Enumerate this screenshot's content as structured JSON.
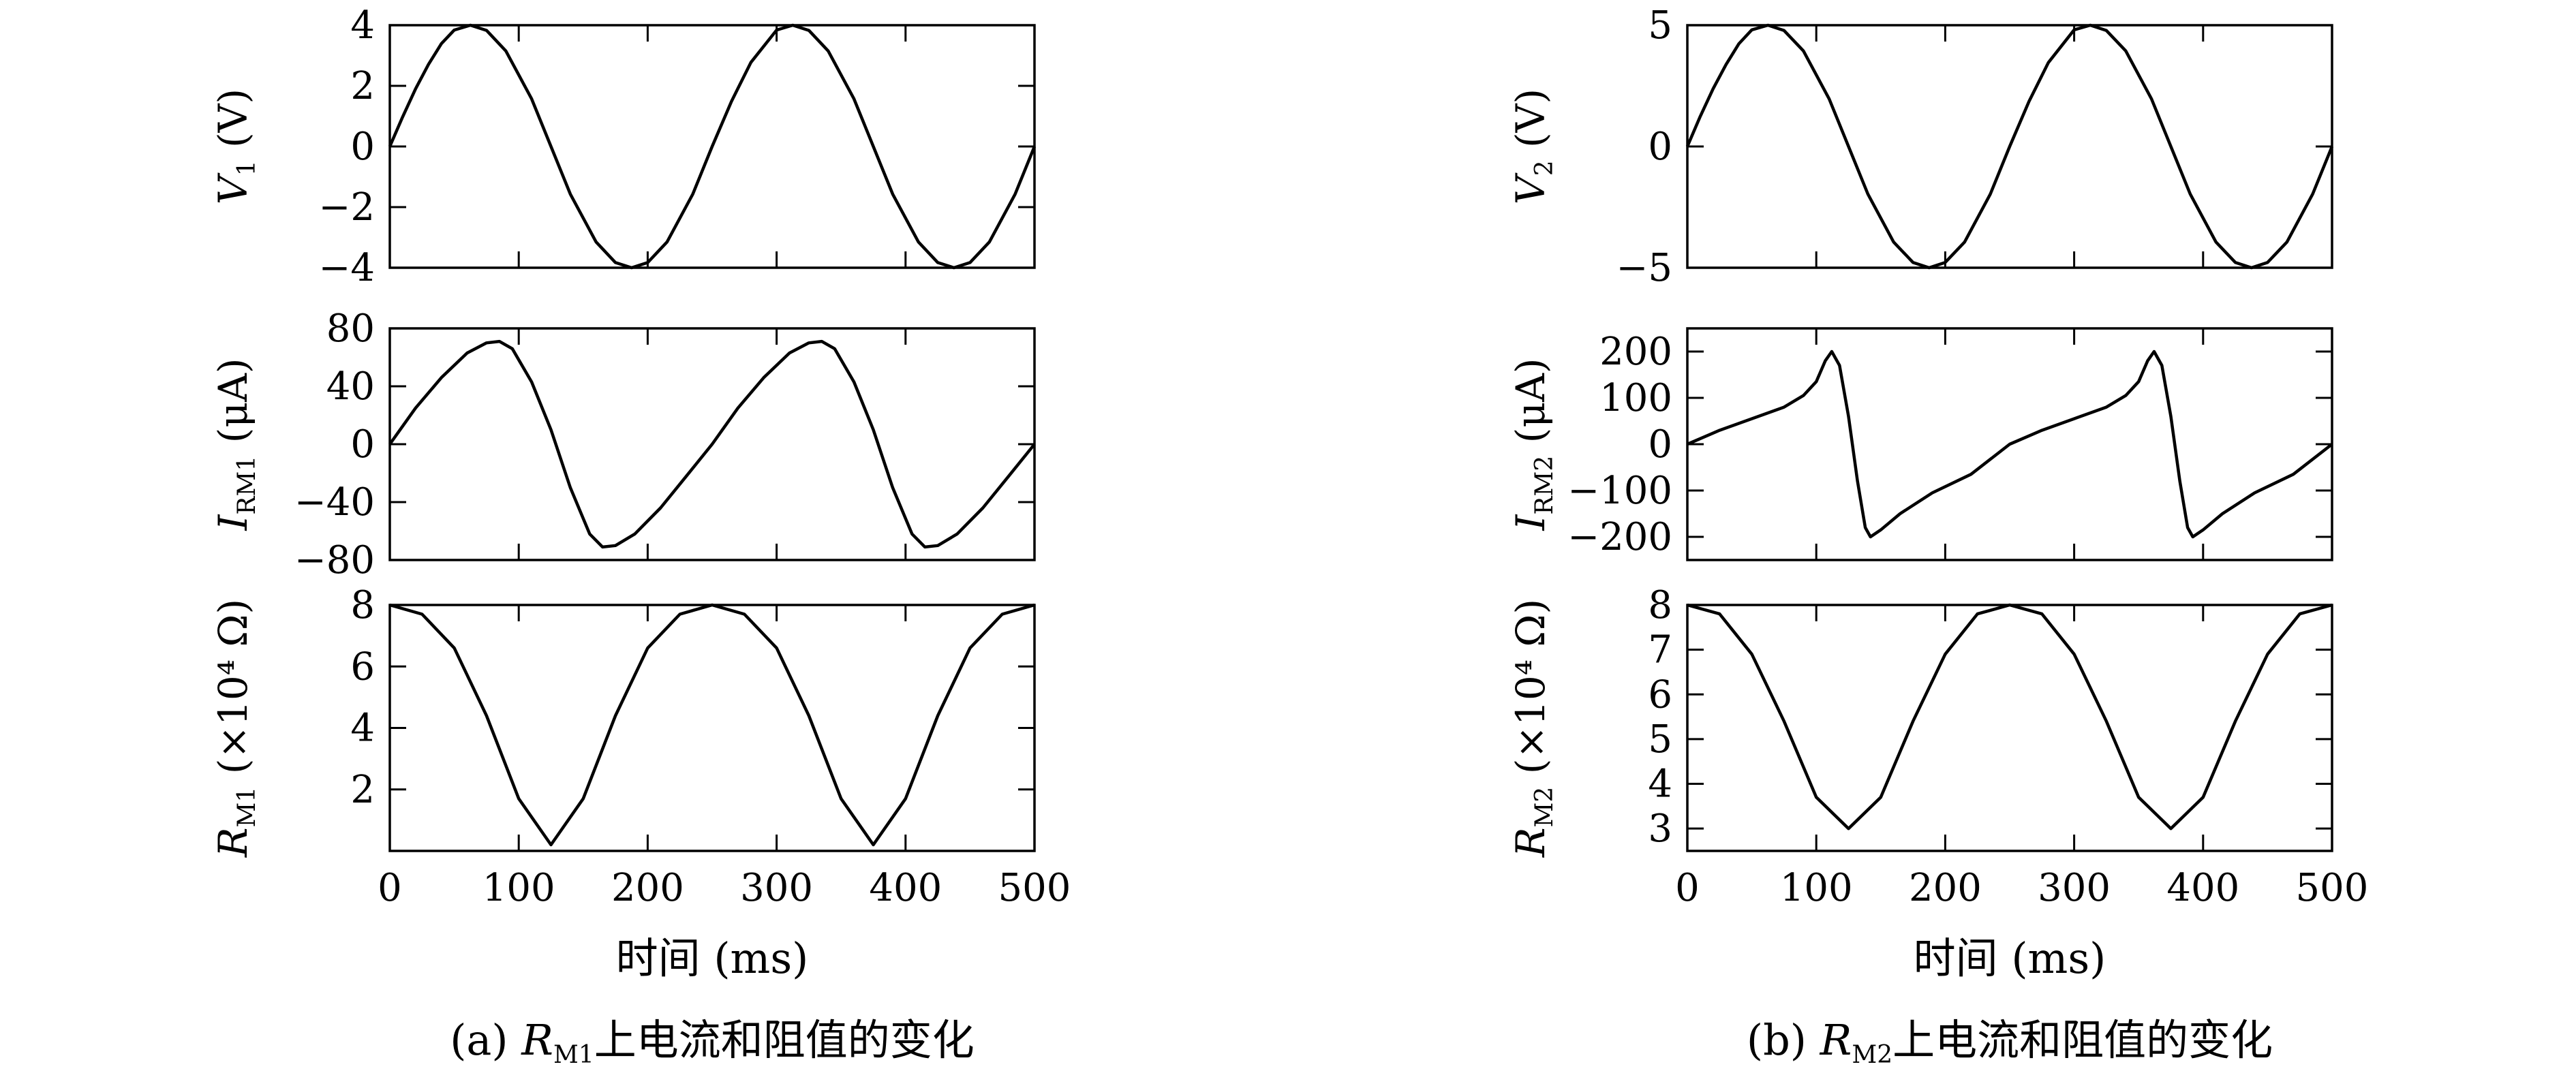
{
  "chart_data": [
    {
      "id": "a",
      "type": "line",
      "caption": {
        "prefix": "(a) ",
        "var": "R",
        "sub": "M1",
        "rest": "上电流和阻值的变化"
      },
      "xlabel": "时间 (ms)",
      "xlim": [
        0,
        500
      ],
      "xticks": [
        "0",
        "100",
        "200",
        "300",
        "400",
        "500"
      ],
      "panels": [
        {
          "ylabel": {
            "var": "V",
            "sub": "1",
            "unit": " (V)"
          },
          "ylim": [
            -4,
            4
          ],
          "yticks": [
            "4",
            "2",
            "0",
            "−2",
            "−4"
          ],
          "yticks_values": [
            4,
            2,
            0,
            -2,
            -4
          ],
          "series": {
            "x": [
              0,
              10,
              20,
              30,
              40,
              50,
              62.5,
              75,
              90,
              110,
              125,
              140,
              160,
              175,
              187.5,
              200,
              215,
              235,
              250,
              265,
              280,
              300,
              312.5,
              325,
              340,
              360,
              375,
              390,
              410,
              425,
              437.5,
              450,
              465,
              485,
              500
            ],
            "y": [
              0,
              0.98,
              1.9,
              2.71,
              3.39,
              3.84,
              4.0,
              3.83,
              3.15,
              1.57,
              0,
              -1.57,
              -3.15,
              -3.83,
              -4.0,
              -3.83,
              -3.15,
              -1.57,
              0,
              1.49,
              2.77,
              3.84,
              4.0,
              3.83,
              3.15,
              1.57,
              0,
              -1.57,
              -3.15,
              -3.83,
              -4.0,
              -3.83,
              -3.15,
              -1.57,
              0
            ]
          }
        },
        {
          "ylabel": {
            "var": "I",
            "sub": "RM1",
            "unit": " (μA)"
          },
          "ylim": [
            -80,
            80
          ],
          "yticks": [
            "80",
            "40",
            "0",
            "−40",
            "−80"
          ],
          "yticks_values": [
            80,
            40,
            0,
            -40,
            -80
          ],
          "series": {
            "x": [
              0,
              20,
              40,
              60,
              75,
              85,
              95,
              110,
              125,
              140,
              155,
              165,
              175,
              190,
              210,
              230,
              250,
              270,
              290,
              310,
              325,
              335,
              345,
              360,
              375,
              390,
              405,
              415,
              425,
              440,
              460,
              480,
              500
            ],
            "y": [
              0,
              25,
              46,
              63,
              70,
              71,
              66,
              43,
              10,
              -30,
              -62,
              -71,
              -70,
              -62,
              -44,
              -22,
              0,
              25,
              46,
              63,
              70,
              71,
              66,
              43,
              10,
              -30,
              -62,
              -71,
              -70,
              -62,
              -44,
              -22,
              0
            ]
          }
        },
        {
          "ylabel": {
            "var": "R",
            "sub": "M1",
            "unit": " (×10⁴ Ω)"
          },
          "ylim": [
            0,
            8
          ],
          "yticks": [
            "8",
            "6",
            "4",
            "2"
          ],
          "yticks_values": [
            8,
            6,
            4,
            2
          ],
          "series": {
            "x": [
              0,
              25,
              50,
              75,
              100,
              125,
              150,
              175,
              200,
              225,
              250,
              275,
              300,
              325,
              350,
              375,
              400,
              425,
              450,
              475,
              500
            ],
            "y": [
              8.0,
              7.7,
              6.6,
              4.4,
              1.7,
              0.2,
              1.7,
              4.4,
              6.6,
              7.7,
              8.0,
              7.7,
              6.6,
              4.4,
              1.7,
              0.2,
              1.7,
              4.4,
              6.6,
              7.7,
              8.0
            ]
          }
        }
      ]
    },
    {
      "id": "b",
      "type": "line",
      "caption": {
        "prefix": "(b) ",
        "var": "R",
        "sub": "M2",
        "rest": "上电流和阻值的变化"
      },
      "xlabel": "时间 (ms)",
      "xlim": [
        0,
        500
      ],
      "xticks": [
        "0",
        "100",
        "200",
        "300",
        "400",
        "500"
      ],
      "panels": [
        {
          "ylabel": {
            "var": "V",
            "sub": "2",
            "unit": " (V)"
          },
          "ylim": [
            -5,
            5
          ],
          "yticks": [
            "5",
            "0",
            "−5"
          ],
          "yticks_values": [
            5,
            0,
            -5
          ],
          "series": {
            "x": [
              0,
              10,
              20,
              30,
              40,
              50,
              62.5,
              75,
              90,
              110,
              125,
              140,
              160,
              175,
              187.5,
              200,
              215,
              235,
              250,
              265,
              280,
              300,
              312.5,
              325,
              340,
              360,
              375,
              390,
              410,
              425,
              437.5,
              450,
              465,
              485,
              500
            ],
            "y": [
              0,
              1.24,
              2.38,
              3.38,
              4.24,
              4.81,
              5.0,
              4.78,
              3.94,
              1.96,
              0,
              -1.96,
              -3.94,
              -4.78,
              -5.0,
              -4.78,
              -3.94,
              -1.96,
              0,
              1.86,
              3.46,
              4.81,
              5.0,
              4.78,
              3.94,
              1.96,
              0,
              -1.96,
              -3.94,
              -4.78,
              -5.0,
              -4.78,
              -3.94,
              -1.96,
              0
            ]
          }
        },
        {
          "ylabel": {
            "var": "I",
            "sub": "RM2",
            "unit": " (μA)"
          },
          "ylim": [
            -250,
            250
          ],
          "yticks": [
            "200",
            "100",
            "0",
            "−100",
            "−200"
          ],
          "yticks_values": [
            200,
            100,
            0,
            -100,
            -200
          ],
          "series": {
            "x": [
              0,
              25,
              50,
              75,
              90,
              100,
              107,
              112,
              118,
              125,
              132,
              138,
              142,
              150,
              165,
              190,
              220,
              250,
              275,
              300,
              325,
              340,
              350,
              357,
              362,
              368,
              375,
              382,
              388,
              392,
              400,
              415,
              440,
              470,
              500
            ],
            "y": [
              0,
              30,
              55,
              80,
              105,
              135,
              180,
              200,
              170,
              60,
              -80,
              -180,
              -200,
              -185,
              -150,
              -105,
              -65,
              0,
              30,
              55,
              80,
              105,
              135,
              180,
              200,
              170,
              60,
              -80,
              -180,
              -200,
              -185,
              -150,
              -105,
              -65,
              0
            ]
          }
        },
        {
          "ylabel": {
            "var": "R",
            "sub": "M2",
            "unit": " (×10⁴ Ω)"
          },
          "ylim": [
            2.5,
            8
          ],
          "yticks": [
            "8",
            "7",
            "6",
            "5",
            "4",
            "3"
          ],
          "yticks_values": [
            8,
            7,
            6,
            5,
            4,
            3
          ],
          "series": {
            "x": [
              0,
              25,
              50,
              75,
              100,
              125,
              150,
              175,
              200,
              225,
              250,
              275,
              300,
              325,
              350,
              375,
              400,
              425,
              450,
              475,
              500
            ],
            "y": [
              8.0,
              7.8,
              6.9,
              5.4,
              3.7,
              3.0,
              3.7,
              5.4,
              6.9,
              7.8,
              8.0,
              7.8,
              6.9,
              5.4,
              3.7,
              3.0,
              3.7,
              5.4,
              6.9,
              7.8,
              8.0
            ]
          }
        }
      ]
    }
  ]
}
